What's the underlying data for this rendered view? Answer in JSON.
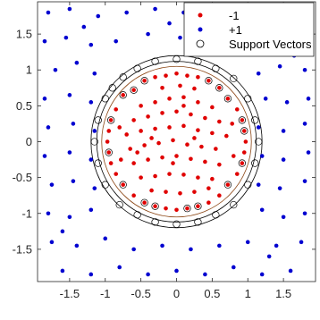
{
  "chart_data": {
    "type": "scatter",
    "title": "",
    "xlabel": "",
    "ylabel": "",
    "xlim": [
      -1.95,
      1.95
    ],
    "ylim": [
      -1.95,
      1.95
    ],
    "grid": false,
    "legend_position": "top-right",
    "xticks": [
      -1.5,
      -1,
      -0.5,
      0,
      0.5,
      1,
      1.5
    ],
    "xtick_labels": [
      "-1.5",
      "-1",
      "-0.5",
      "0",
      "0.5",
      "1",
      "1.5"
    ],
    "yticks": [
      -1.5,
      -1,
      -0.5,
      0,
      0.5,
      1,
      1.5
    ],
    "ytick_labels": [
      "-1.5",
      "-1",
      "-0.5",
      "0",
      "0.5",
      "1",
      "1.5"
    ],
    "series": [
      {
        "name": "-1",
        "color": "#e00000",
        "marker": "dot",
        "points": [
          [
            -0.75,
            0.65
          ],
          [
            -0.6,
            0.72
          ],
          [
            -0.45,
            0.85
          ],
          [
            -0.3,
            0.9
          ],
          [
            -0.15,
            0.92
          ],
          [
            0,
            0.95
          ],
          [
            0.15,
            0.92
          ],
          [
            0.3,
            0.9
          ],
          [
            0.45,
            0.85
          ],
          [
            0.6,
            0.75
          ],
          [
            0.72,
            0.6
          ],
          [
            -0.85,
            0.45
          ],
          [
            -0.92,
            0.3
          ],
          [
            -0.95,
            0.15
          ],
          [
            -0.97,
            0
          ],
          [
            -0.95,
            -0.15
          ],
          [
            -0.92,
            -0.3
          ],
          [
            -0.85,
            -0.45
          ],
          [
            -0.75,
            -0.6
          ],
          [
            -0.6,
            -0.75
          ],
          [
            -0.45,
            -0.85
          ],
          [
            -0.3,
            -0.9
          ],
          [
            -0.15,
            -0.93
          ],
          [
            0,
            -0.95
          ],
          [
            0.15,
            -0.93
          ],
          [
            0.3,
            -0.9
          ],
          [
            0.45,
            -0.85
          ],
          [
            0.6,
            -0.75
          ],
          [
            0.72,
            -0.6
          ],
          [
            0.85,
            -0.45
          ],
          [
            0.92,
            -0.3
          ],
          [
            0.95,
            -0.15
          ],
          [
            0.97,
            0
          ],
          [
            0.95,
            0.15
          ],
          [
            0.92,
            0.3
          ],
          [
            0.85,
            0.45
          ],
          [
            -0.5,
            0.5
          ],
          [
            -0.3,
            0.55
          ],
          [
            -0.1,
            0.6
          ],
          [
            0.1,
            0.62
          ],
          [
            0.3,
            0.55
          ],
          [
            0.5,
            0.48
          ],
          [
            -0.6,
            0.3
          ],
          [
            -0.4,
            0.35
          ],
          [
            -0.2,
            0.4
          ],
          [
            0,
            0.42
          ],
          [
            0.2,
            0.38
          ],
          [
            0.4,
            0.33
          ],
          [
            0.6,
            0.28
          ],
          [
            -0.7,
            0.1
          ],
          [
            -0.5,
            0.15
          ],
          [
            -0.3,
            0.18
          ],
          [
            -0.1,
            0.2
          ],
          [
            0.1,
            0.22
          ],
          [
            0.3,
            0.16
          ],
          [
            0.5,
            0.12
          ],
          [
            0.7,
            0.08
          ],
          [
            -0.65,
            -0.1
          ],
          [
            -0.45,
            -0.05
          ],
          [
            -0.25,
            -0.02
          ],
          [
            -0.05,
            0.02
          ],
          [
            0.15,
            -0.04
          ],
          [
            0.35,
            -0.07
          ],
          [
            0.55,
            -0.1
          ],
          [
            -0.6,
            -0.3
          ],
          [
            -0.4,
            -0.25
          ],
          [
            -0.2,
            -0.22
          ],
          [
            0,
            -0.2
          ],
          [
            0.2,
            -0.24
          ],
          [
            0.4,
            -0.28
          ],
          [
            0.6,
            -0.32
          ],
          [
            -0.5,
            -0.5
          ],
          [
            -0.3,
            -0.48
          ],
          [
            -0.1,
            -0.45
          ],
          [
            0.1,
            -0.46
          ],
          [
            0.3,
            -0.5
          ],
          [
            0.5,
            -0.52
          ],
          [
            -0.35,
            -0.68
          ],
          [
            -0.15,
            -0.7
          ],
          [
            0.05,
            -0.72
          ],
          [
            0.25,
            -0.7
          ],
          [
            0.45,
            -0.65
          ],
          [
            -0.2,
            0.75
          ],
          [
            0.05,
            0.78
          ],
          [
            0.25,
            0.74
          ],
          [
            -0.8,
            0.2
          ],
          [
            0.8,
            -0.2
          ],
          [
            -0.78,
            -0.25
          ],
          [
            0.78,
            0.25
          ],
          [
            -0.05,
            -0.3
          ],
          [
            0.25,
            0.05
          ],
          [
            -0.35,
            0.05
          ],
          [
            0.1,
            0.5
          ],
          [
            -0.55,
            -0.15
          ]
        ]
      },
      {
        "name": "+1",
        "color": "#0000d0",
        "marker": "dot",
        "points": [
          [
            -1.8,
            1.8
          ],
          [
            -1.5,
            1.85
          ],
          [
            -1.1,
            1.75
          ],
          [
            -0.7,
            1.8
          ],
          [
            -0.3,
            1.85
          ],
          [
            0.1,
            1.8
          ],
          [
            0.5,
            1.75
          ],
          [
            0.9,
            1.85
          ],
          [
            1.3,
            1.8
          ],
          [
            1.7,
            1.75
          ],
          [
            -1.85,
            1.4
          ],
          [
            -1.55,
            1.45
          ],
          [
            -1.2,
            1.35
          ],
          [
            -0.85,
            1.4
          ],
          [
            -0.4,
            1.5
          ],
          [
            0.05,
            1.45
          ],
          [
            0.5,
            1.5
          ],
          [
            0.95,
            1.4
          ],
          [
            1.35,
            1.45
          ],
          [
            1.75,
            1.35
          ],
          [
            -1.7,
            1
          ],
          [
            -1.4,
            1.1
          ],
          [
            -1.15,
            0.95
          ],
          [
            1.15,
            0.95
          ],
          [
            1.45,
            1.05
          ],
          [
            1.8,
            1
          ],
          [
            -1.85,
            0.6
          ],
          [
            -1.5,
            0.65
          ],
          [
            -1.2,
            0.55
          ],
          [
            1.25,
            0.6
          ],
          [
            1.55,
            0.55
          ],
          [
            1.85,
            0.6
          ],
          [
            -1.8,
            0.2
          ],
          [
            -1.45,
            0.25
          ],
          [
            -1.15,
            0.15
          ],
          [
            1.15,
            0.2
          ],
          [
            1.5,
            0.15
          ],
          [
            1.8,
            0.25
          ],
          [
            -1.85,
            -0.2
          ],
          [
            -1.5,
            -0.15
          ],
          [
            -1.2,
            -0.25
          ],
          [
            1.2,
            -0.2
          ],
          [
            1.5,
            -0.25
          ],
          [
            1.85,
            -0.15
          ],
          [
            -1.75,
            -0.6
          ],
          [
            -1.45,
            -0.55
          ],
          [
            -1.15,
            -0.65
          ],
          [
            1.15,
            -0.6
          ],
          [
            1.45,
            -0.65
          ],
          [
            1.8,
            -0.55
          ],
          [
            -1.8,
            -1
          ],
          [
            -1.5,
            -1.05
          ],
          [
            -1.2,
            -0.95
          ],
          [
            1.2,
            -0.95
          ],
          [
            1.5,
            -1.05
          ],
          [
            1.8,
            -1
          ],
          [
            -1.75,
            -1.4
          ],
          [
            -1.4,
            -1.45
          ],
          [
            -1,
            -1.35
          ],
          [
            -0.6,
            -1.5
          ],
          [
            -0.2,
            -1.45
          ],
          [
            0.2,
            -1.5
          ],
          [
            0.6,
            -1.45
          ],
          [
            1,
            -1.4
          ],
          [
            1.4,
            -1.45
          ],
          [
            1.75,
            -1.4
          ],
          [
            -1.6,
            -1.8
          ],
          [
            -1.2,
            -1.85
          ],
          [
            -0.8,
            -1.75
          ],
          [
            -0.4,
            -1.85
          ],
          [
            0,
            -1.8
          ],
          [
            0.4,
            -1.85
          ],
          [
            0.8,
            -1.75
          ],
          [
            1.2,
            -1.85
          ],
          [
            1.6,
            -1.8
          ],
          [
            -1.3,
            1.6
          ],
          [
            1.3,
            -1.6
          ],
          [
            -1.6,
            -1.25
          ],
          [
            1.65,
            1.2
          ],
          [
            -0.1,
            1.65
          ]
        ]
      }
    ],
    "support_vectors": [
      [
        -0.9,
        0.75
      ],
      [
        -0.75,
        0.9
      ],
      [
        -0.55,
        1.02
      ],
      [
        -0.3,
        1.12
      ],
      [
        0,
        1.15
      ],
      [
        0.3,
        1.12
      ],
      [
        0.55,
        1.02
      ],
      [
        0.8,
        0.88
      ],
      [
        1,
        0.6
      ],
      [
        1.1,
        0.3
      ],
      [
        1.15,
        0
      ],
      [
        1.1,
        -0.3
      ],
      [
        1,
        -0.6
      ],
      [
        0.8,
        -0.88
      ],
      [
        0.55,
        -1.02
      ],
      [
        0.3,
        -1.12
      ],
      [
        0,
        -1.15
      ],
      [
        -0.3,
        -1.12
      ],
      [
        -0.55,
        -1.02
      ],
      [
        -0.8,
        -0.88
      ],
      [
        -1,
        -0.6
      ],
      [
        -1.1,
        -0.3
      ],
      [
        -1.15,
        0
      ],
      [
        -1.1,
        0.3
      ],
      [
        -1,
        0.6
      ],
      [
        -0.75,
        0.65
      ],
      [
        -0.6,
        0.72
      ],
      [
        -0.45,
        0.85
      ],
      [
        0.45,
        0.85
      ],
      [
        0.6,
        0.75
      ],
      [
        0.72,
        0.6
      ],
      [
        -0.92,
        0.3
      ],
      [
        0.92,
        0.3
      ],
      [
        0.95,
        0.15
      ],
      [
        -0.95,
        -0.15
      ],
      [
        0.92,
        -0.3
      ],
      [
        -0.75,
        -0.6
      ],
      [
        0.72,
        -0.6
      ],
      [
        -0.45,
        -0.85
      ],
      [
        -0.3,
        -0.9
      ],
      [
        0.3,
        -0.9
      ],
      [
        0.15,
        -0.93
      ]
    ],
    "support_vectors_label": "Support Vectors",
    "boundaries": [
      {
        "type": "circle",
        "cx": 0,
        "cy": 0,
        "r": 1.05,
        "color": "#8b4513"
      },
      {
        "type": "circle",
        "cx": 0,
        "cy": 0,
        "r": 1.12,
        "color": "#000000"
      },
      {
        "type": "circle",
        "cx": 0,
        "cy": 0,
        "r": 1.2,
        "color": "#000000"
      }
    ]
  }
}
